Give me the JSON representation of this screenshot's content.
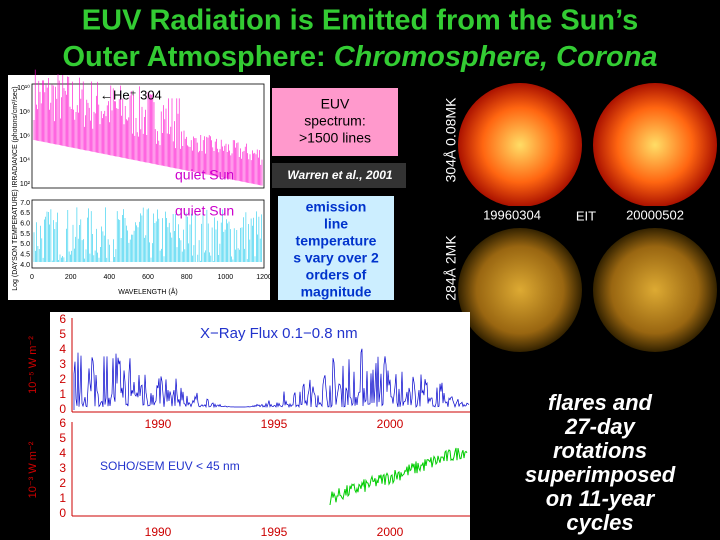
{
  "title": {
    "line1": "EUV Radiation is Emitted from the Sun’s",
    "line2_prefix": "Outer Atmosphere: ",
    "line2_italic": "Chromosphere, Corona"
  },
  "spectrum_panel": {
    "annotation": "←He⁺ 304",
    "label": "quiet Sun",
    "y_label": "IRRADIANCE (photons/cm²/sec)",
    "y_ticks": [
      "10¹⁰",
      "10⁸",
      "10⁶",
      "10⁴",
      "10²"
    ]
  },
  "temperature_panel": {
    "label": "quiet Sun",
    "y_label": "Log (DAYSON TEMPERATURE)",
    "y_ticks": [
      "7.0",
      "6.5",
      "6.0",
      "5.5",
      "5.0",
      "4.5",
      "4.0"
    ],
    "x_ticks": [
      "0",
      "200",
      "400",
      "600",
      "800",
      "1000",
      "1200"
    ],
    "x_label": "WAVELENGTH (Å)"
  },
  "spectrum_box": {
    "lines": [
      "EUV",
      "spectrum:",
      ">1500 lines"
    ]
  },
  "citation": "Warren et al., 2001",
  "temperature_box": {
    "lines": [
      "emission",
      "line",
      "temperature",
      "s vary over 2",
      "orders of",
      "magnitude"
    ]
  },
  "images": {
    "top_label": "304Å 0.08MK",
    "bottom_label": "284Å 2MK",
    "date_left": "19960304",
    "instrument": "EIT",
    "date_right": "20000502"
  },
  "xray_plot": {
    "y_label": "10⁻⁵ W m⁻²",
    "y_ticks": [
      "0",
      "1",
      "2",
      "3",
      "4",
      "5",
      "6"
    ],
    "title": "X−Ray Flux 0.1−0.8 nm",
    "x_ticks": [
      "1990",
      "1995",
      "2000"
    ]
  },
  "euv_plot": {
    "y_label": "10⁻³ W m⁻²",
    "y_ticks": [
      "0",
      "1",
      "2",
      "3",
      "4",
      "5",
      "6"
    ],
    "title": "SOHO/SEM EUV < 45 nm",
    "x_ticks": [
      "1990",
      "1995",
      "2000"
    ]
  },
  "caption": {
    "lines": [
      "flares and",
      "27-day",
      "rotations",
      "superimposed",
      "on 11-year",
      "cycles"
    ]
  }
}
